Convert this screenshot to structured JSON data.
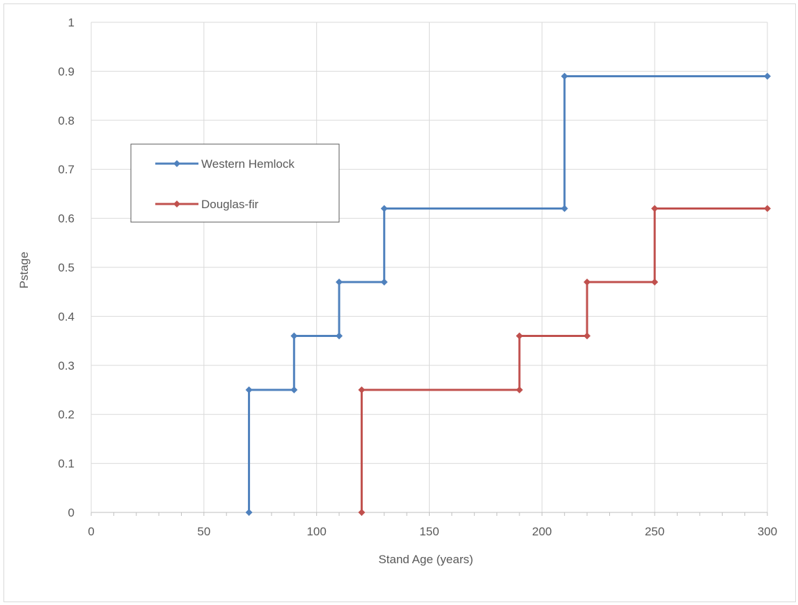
{
  "chart_data": {
    "type": "line",
    "title": "",
    "xlabel": "Stand Age (years)",
    "ylabel": "Pstage",
    "xlim": [
      0,
      300
    ],
    "ylim": [
      0,
      1
    ],
    "x_ticks": [
      0,
      50,
      100,
      150,
      200,
      250,
      300
    ],
    "y_ticks": [
      0,
      0.1,
      0.2,
      0.3,
      0.4,
      0.5,
      0.6,
      0.7,
      0.8,
      0.9,
      1
    ],
    "x_tick_labels": [
      "0",
      "50",
      "100",
      "150",
      "200",
      "250",
      "300"
    ],
    "y_tick_labels": [
      "0",
      "0.1",
      "0.2",
      "0.3",
      "0.4",
      "0.5",
      "0.6",
      "0.7",
      "0.8",
      "0.9",
      "1"
    ],
    "grid": true,
    "legend_position": "left",
    "series": [
      {
        "name": "Western Hemlock",
        "color": "#4f81bd",
        "marker": "diamond",
        "points": [
          [
            70,
            0
          ],
          [
            70,
            0.25
          ],
          [
            90,
            0.25
          ],
          [
            90,
            0.36
          ],
          [
            110,
            0.36
          ],
          [
            110,
            0.47
          ],
          [
            130,
            0.47
          ],
          [
            130,
            0.62
          ],
          [
            210,
            0.62
          ],
          [
            210,
            0.89
          ],
          [
            300,
            0.89
          ]
        ]
      },
      {
        "name": "Douglas-fir",
        "color": "#c0504d",
        "marker": "diamond",
        "points": [
          [
            120,
            0
          ],
          [
            120,
            0.25
          ],
          [
            190,
            0.25
          ],
          [
            190,
            0.36
          ],
          [
            220,
            0.36
          ],
          [
            220,
            0.47
          ],
          [
            250,
            0.47
          ],
          [
            250,
            0.62
          ],
          [
            300,
            0.62
          ]
        ]
      }
    ]
  }
}
